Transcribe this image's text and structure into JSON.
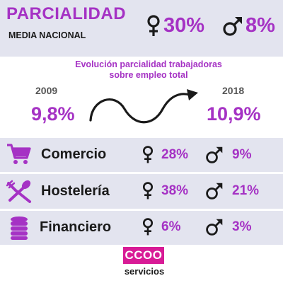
{
  "header": {
    "title": "PARCIALIDAD",
    "subtitle": "MEDIA NACIONAL",
    "female_pct": "30%",
    "male_pct": "8%"
  },
  "evolution": {
    "title_line1": "Evolución parcialidad trabajadoras",
    "title_line2": "sobre empleo total",
    "start_year": "2009",
    "start_value": "9,8%",
    "end_year": "2018",
    "end_value": "10,9%"
  },
  "sectors": [
    {
      "name": "Comercio",
      "icon": "shopping-cart-icon",
      "female_pct": "28%",
      "male_pct": "9%"
    },
    {
      "name": "Hostelería",
      "icon": "fork-spoon-icon",
      "female_pct": "38%",
      "male_pct": "21%"
    },
    {
      "name": "Financiero",
      "icon": "coin-stack-icon",
      "female_pct": "6%",
      "male_pct": "3%"
    }
  ],
  "logo": {
    "text": "CCOO",
    "subtext": "servicios"
  },
  "colors": {
    "accent": "#a532c4",
    "band": "#e3e4ef",
    "logo": "#d81b96"
  }
}
